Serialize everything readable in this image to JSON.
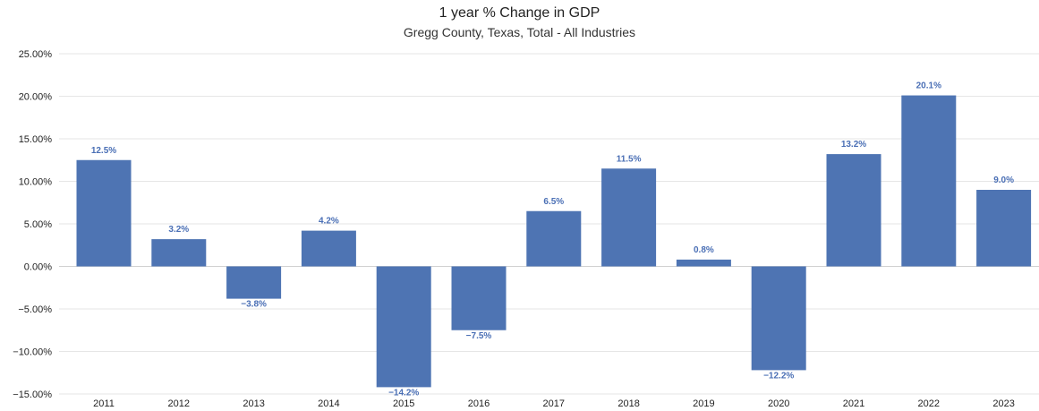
{
  "chart_data": {
    "type": "bar",
    "title": "1 year % Change in GDP",
    "subtitle": "Gregg County, Texas, Total - All Industries",
    "xlabel": "",
    "ylabel": "",
    "categories": [
      "2011",
      "2012",
      "2013",
      "2014",
      "2015",
      "2016",
      "2017",
      "2018",
      "2019",
      "2020",
      "2021",
      "2022",
      "2023"
    ],
    "values": [
      12.5,
      3.2,
      -3.8,
      4.2,
      -14.2,
      -7.5,
      6.5,
      11.5,
      0.8,
      -12.2,
      13.2,
      20.1,
      9.0
    ],
    "data_labels": [
      "12.5%",
      "3.2%",
      "−3.8%",
      "4.2%",
      "−14.2%",
      "−7.5%",
      "6.5%",
      "11.5%",
      "0.8%",
      "−12.2%",
      "13.2%",
      "20.1%",
      "9.0%"
    ],
    "ylim": [
      -15,
      25
    ],
    "yticks": [
      25,
      20,
      15,
      10,
      5,
      0,
      -5,
      -10,
      -15
    ],
    "ytick_labels": [
      "25.00%",
      "20.00%",
      "15.00%",
      "10.00%",
      "5.00%",
      "0.00%",
      "−5.00%",
      "−10.00%",
      "−15.00%"
    ],
    "bar_color": "#4e74b3",
    "label_color": "#4a6fb5",
    "grid": true
  }
}
